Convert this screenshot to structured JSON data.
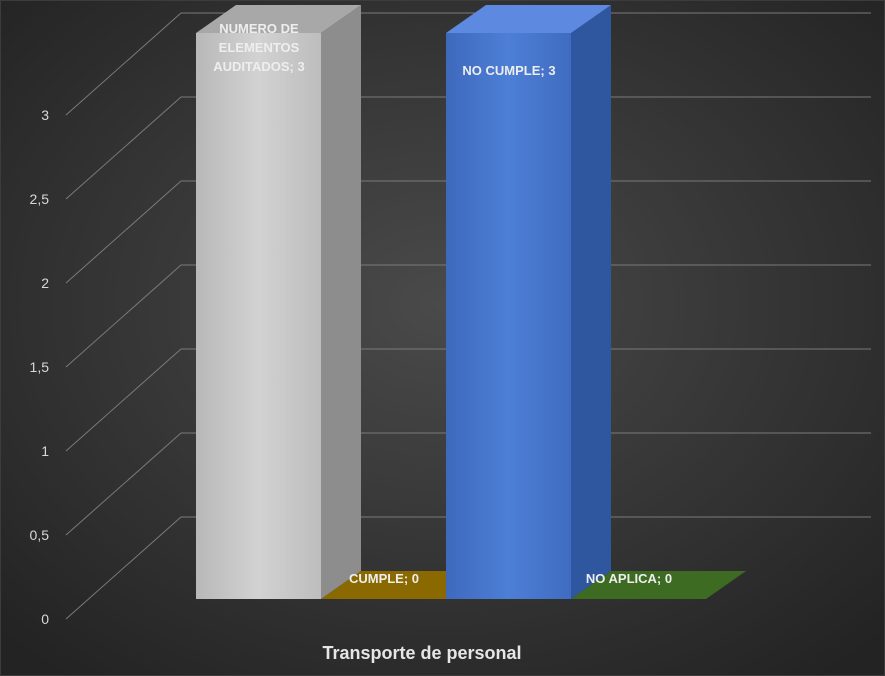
{
  "chart_data": {
    "type": "bar",
    "categories": [
      "Transporte de personal"
    ],
    "series": [
      {
        "name": "NUMERO DE ELEMENTOS AUDITADOS",
        "values": [
          3
        ],
        "color": "#c4c4c4"
      },
      {
        "name": "CUMPLE",
        "values": [
          0
        ],
        "color": "#8a6a00"
      },
      {
        "name": "NO CUMPLE",
        "values": [
          3
        ],
        "color": "#4472c4"
      },
      {
        "name": "NO APLICA",
        "values": [
          0
        ],
        "color": "#3d6b22"
      }
    ],
    "data_labels": [
      [
        "NUMERO DE",
        "ELEMENTOS",
        "AUDITADOS; 3"
      ],
      [
        "CUMPLE; 0"
      ],
      [
        "NO CUMPLE; 3"
      ],
      [
        "NO APLICA; 0"
      ]
    ],
    "yticks": [
      "0",
      "0,5",
      "1",
      "1,5",
      "2",
      "2,5",
      "3"
    ],
    "ylim": [
      0,
      3.5
    ],
    "grid": true,
    "style": "3d-column",
    "background": "#2a2a2a"
  }
}
